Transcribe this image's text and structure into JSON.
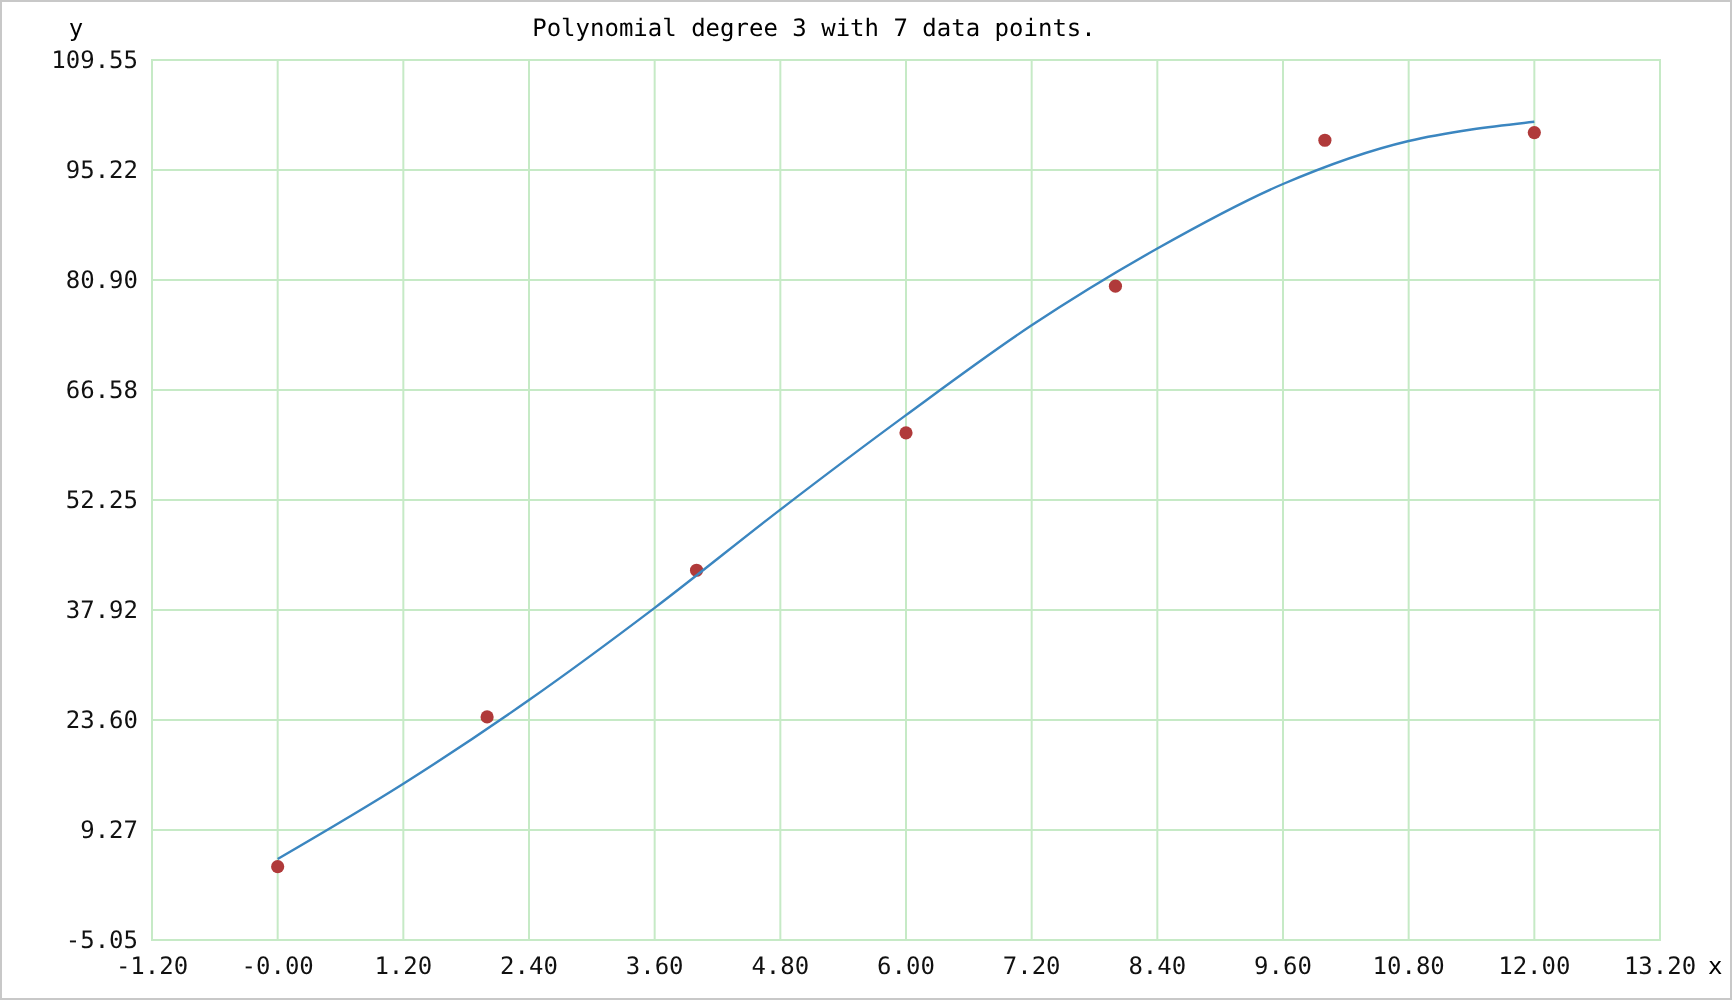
{
  "chart_data": {
    "type": "scatter",
    "title": "Polynomial degree 3 with 7 data points.",
    "xlabel": "x",
    "ylabel": "y",
    "xlim": [
      -1.2,
      13.2
    ],
    "xticks": [
      {
        "value": -1.2,
        "label": "-1.20"
      },
      {
        "value": 0,
        "label": "-0.00"
      },
      {
        "value": 1.2,
        "label": "1.20"
      },
      {
        "value": 2.4,
        "label": "2.40"
      },
      {
        "value": 3.6,
        "label": "3.60"
      },
      {
        "value": 4.8,
        "label": "4.80"
      },
      {
        "value": 6,
        "label": "6.00"
      },
      {
        "value": 7.2,
        "label": "7.20"
      },
      {
        "value": 8.4,
        "label": "8.40"
      },
      {
        "value": 9.6,
        "label": "9.60"
      },
      {
        "value": 10.8,
        "label": "10.80"
      },
      {
        "value": 12,
        "label": "12.00"
      },
      {
        "value": 13.2,
        "label": "13.20"
      }
    ],
    "ylim": [
      -5.05,
      109.55
    ],
    "yticks": [
      -5.05,
      9.27,
      {
        "value": 23.6,
        "label": "23.60"
      },
      37.92,
      52.25,
      66.58,
      {
        "value": 80.9,
        "label": "80.90"
      },
      95.22,
      109.55
    ],
    "grid": true,
    "series": [
      {
        "color": "#b03a3a",
        "marker": "circle",
        "x": [
          0,
          2,
          4,
          6,
          8,
          10,
          12
        ],
        "values": [
          4.5,
          24.0,
          43.1,
          61.0,
          80.1,
          99.1,
          100.1
        ]
      },
      {
        "type": "line",
        "color": "#3b86c0",
        "marker": "none",
        "x": [
          0,
          1.2,
          2.4,
          3.6,
          4.8,
          6,
          7.2,
          8.4,
          9.6,
          10.8,
          11.4,
          12
        ],
        "values": [
          5.5,
          15.3,
          26.2,
          38.2,
          51.0,
          63.3,
          75.0,
          85.0,
          93.4,
          99.0,
          100.5,
          101.5
        ]
      }
    ]
  }
}
